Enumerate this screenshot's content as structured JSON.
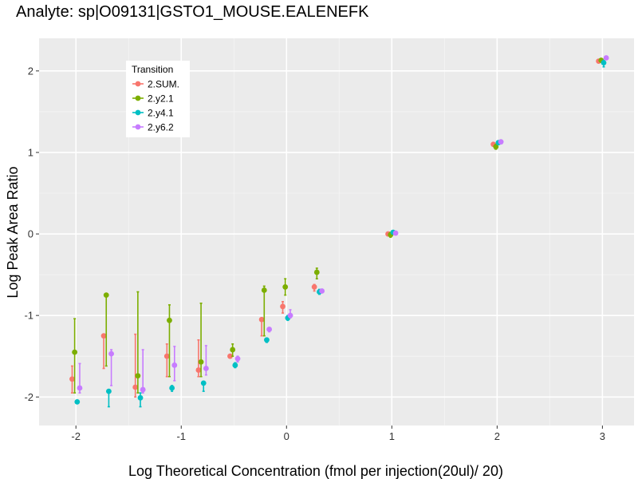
{
  "chart_data": {
    "type": "scatter",
    "title": "Analyte: sp|O09131|GSTO1_MOUSE.EALENEFK",
    "xlabel": "Log Theoretical Concentration (fmol per injection(20ul)/ 20)",
    "ylabel": "Log Peak Area Ratio",
    "xlim": [
      -2.35,
      3.3
    ],
    "ylim": [
      -2.35,
      2.4
    ],
    "x_ticks": [
      -2,
      -1,
      0,
      1,
      2,
      3
    ],
    "x_tick_labels": [
      "-2",
      "-1",
      "0",
      "1",
      "2",
      "3"
    ],
    "x_minor_ticks": [
      -1.5,
      -0.5,
      0.5,
      1.5,
      2.5
    ],
    "y_ticks": [
      -2,
      -1,
      0,
      1,
      2
    ],
    "y_tick_labels": [
      "-2",
      "-1",
      "0",
      "1",
      "2"
    ],
    "y_minor_ticks": [
      -1.5,
      -0.5,
      0.5,
      1.5
    ],
    "legend": {
      "title": "Transition",
      "position": "top-left"
    },
    "series": [
      {
        "name": "2.SUM.",
        "color": "#F8766D",
        "points": [
          {
            "x": -2.0,
            "y": -1.78,
            "lo": -1.95,
            "hi": -1.62
          },
          {
            "x": -1.7,
            "y": -1.25,
            "lo": -1.65,
            "hi": -1.25
          },
          {
            "x": -1.4,
            "y": -1.88,
            "lo": -2.0,
            "hi": -1.23
          },
          {
            "x": -1.1,
            "y": -1.5,
            "lo": -1.75,
            "hi": -1.35
          },
          {
            "x": -0.8,
            "y": -1.67,
            "lo": -1.75,
            "hi": -1.3
          },
          {
            "x": -0.5,
            "y": -1.5,
            "lo": -1.52,
            "hi": -1.48
          },
          {
            "x": -0.2,
            "y": -1.05,
            "lo": -1.25,
            "hi": -1.05
          },
          {
            "x": 0.0,
            "y": -0.89,
            "lo": -0.97,
            "hi": -0.83
          },
          {
            "x": 0.3,
            "y": -0.65,
            "lo": -0.7,
            "hi": -0.62
          },
          {
            "x": 1.0,
            "y": 0.0,
            "lo": -0.02,
            "hi": 0.02
          },
          {
            "x": 2.0,
            "y": 1.1,
            "lo": 1.08,
            "hi": 1.12
          },
          {
            "x": 3.0,
            "y": 2.12,
            "lo": 2.1,
            "hi": 2.14
          }
        ]
      },
      {
        "name": "2.y2.1",
        "color": "#7CAE00",
        "points": [
          {
            "x": -2.0,
            "y": -1.45,
            "lo": -1.95,
            "hi": -1.04
          },
          {
            "x": -1.7,
            "y": -0.75,
            "lo": -1.62,
            "hi": -0.75
          },
          {
            "x": -1.4,
            "y": -1.74,
            "lo": -1.95,
            "hi": -0.71
          },
          {
            "x": -1.1,
            "y": -1.06,
            "lo": -1.75,
            "hi": -0.87
          },
          {
            "x": -0.8,
            "y": -1.57,
            "lo": -1.75,
            "hi": -0.85
          },
          {
            "x": -0.5,
            "y": -1.42,
            "lo": -1.5,
            "hi": -1.35
          },
          {
            "x": -0.2,
            "y": -0.69,
            "lo": -1.25,
            "hi": -0.64
          },
          {
            "x": 0.0,
            "y": -0.65,
            "lo": -0.75,
            "hi": -0.55
          },
          {
            "x": 0.3,
            "y": -0.47,
            "lo": -0.55,
            "hi": -0.42
          },
          {
            "x": 1.0,
            "y": -0.01,
            "lo": -0.04,
            "hi": 0.02
          },
          {
            "x": 2.0,
            "y": 1.07,
            "lo": 1.04,
            "hi": 1.1
          },
          {
            "x": 3.0,
            "y": 2.13,
            "lo": 2.11,
            "hi": 2.15
          }
        ]
      },
      {
        "name": "2.y4.1",
        "color": "#00BFC4",
        "points": [
          {
            "x": -2.0,
            "y": -2.06,
            "lo": -2.08,
            "hi": -2.04
          },
          {
            "x": -1.7,
            "y": -1.93,
            "lo": -2.12,
            "hi": -1.93
          },
          {
            "x": -1.4,
            "y": -2.01,
            "lo": -2.12,
            "hi": -1.95
          },
          {
            "x": -1.1,
            "y": -1.89,
            "lo": -1.93,
            "hi": -1.86
          },
          {
            "x": -0.8,
            "y": -1.83,
            "lo": -1.93,
            "hi": -1.83
          },
          {
            "x": -0.5,
            "y": -1.61,
            "lo": -1.64,
            "hi": -1.58
          },
          {
            "x": -0.2,
            "y": -1.3,
            "lo": -1.33,
            "hi": -1.28
          },
          {
            "x": 0.0,
            "y": -1.03,
            "lo": -1.06,
            "hi": -1.0
          },
          {
            "x": 0.3,
            "y": -0.71,
            "lo": -0.74,
            "hi": -0.68
          },
          {
            "x": 1.0,
            "y": 0.02,
            "lo": 0.0,
            "hi": 0.04
          },
          {
            "x": 2.0,
            "y": 1.12,
            "lo": 1.1,
            "hi": 1.14
          },
          {
            "x": 3.0,
            "y": 2.1,
            "lo": 2.05,
            "hi": 2.13
          }
        ]
      },
      {
        "name": "2.y6.2",
        "color": "#C77CFF",
        "points": [
          {
            "x": -2.0,
            "y": -1.89,
            "lo": -1.95,
            "hi": -1.59
          },
          {
            "x": -1.7,
            "y": -1.47,
            "lo": -1.86,
            "hi": -1.42
          },
          {
            "x": -1.4,
            "y": -1.91,
            "lo": -1.95,
            "hi": -1.42
          },
          {
            "x": -1.1,
            "y": -1.61,
            "lo": -1.8,
            "hi": -1.38
          },
          {
            "x": -0.8,
            "y": -1.65,
            "lo": -1.73,
            "hi": -1.37
          },
          {
            "x": -0.5,
            "y": -1.53,
            "lo": -1.57,
            "hi": -1.5
          },
          {
            "x": -0.2,
            "y": -1.17,
            "lo": -1.2,
            "hi": -1.15
          },
          {
            "x": 0.0,
            "y": -1.0,
            "lo": -1.03,
            "hi": -0.93
          },
          {
            "x": 0.3,
            "y": -0.7,
            "lo": -0.72,
            "hi": -0.68
          },
          {
            "x": 1.0,
            "y": 0.01,
            "lo": -0.01,
            "hi": 0.03
          },
          {
            "x": 2.0,
            "y": 1.13,
            "lo": 1.11,
            "hi": 1.15
          },
          {
            "x": 3.0,
            "y": 2.16,
            "lo": 2.14,
            "hi": 2.18
          }
        ]
      }
    ]
  }
}
